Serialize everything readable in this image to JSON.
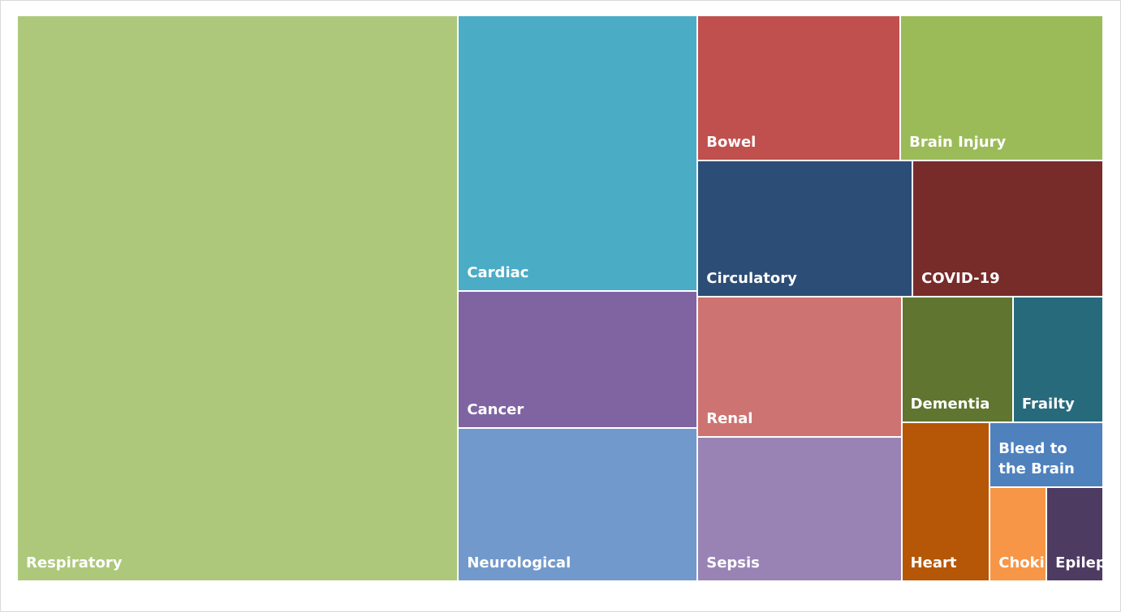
{
  "chart_data": {
    "type": "treemap",
    "categories": [
      "Respiratory",
      "Cardiac",
      "Cancer",
      "Neurological",
      "Bowel",
      "Brain Injury",
      "Circulatory",
      "COVID-19",
      "Renal",
      "Sepsis",
      "Dementia",
      "Frailty",
      "Heart",
      "Bleed to the Brain",
      "Choking",
      "Epilepsy"
    ],
    "values": [
      374,
      99,
      49,
      55,
      44,
      44,
      44,
      39,
      43,
      44,
      21,
      17,
      21,
      11,
      8,
      8
    ],
    "colors": [
      "#adc87b",
      "#4bacc6",
      "#8064a2",
      "#7299cb",
      "#c0504d",
      "#9bbb59",
      "#2c4d75",
      "#772c2a",
      "#cd7371",
      "#9983b5",
      "#5f7530",
      "#276a7c",
      "#b65708",
      "#4f81bd",
      "#f79646",
      "#4d3b62"
    ]
  }
}
